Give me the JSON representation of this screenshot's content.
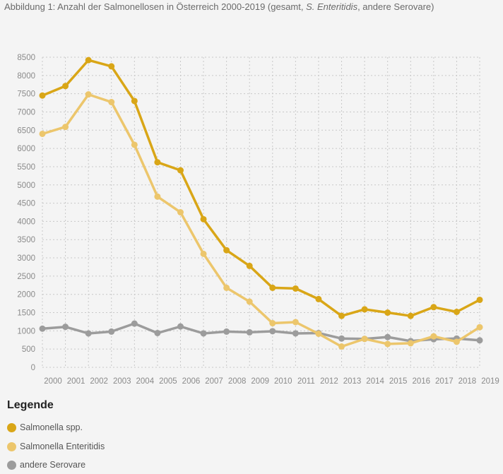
{
  "title": {
    "prefix": "Abbildung 1: Anzahl der Salmonellosen in Österreich 2000-2019 (gesamt, ",
    "italic": "S. Enteritidis",
    "suffix": ", andere Serovare)"
  },
  "legend": {
    "title": "Legende",
    "items": [
      "Salmonella spp.",
      "Salmonella Enteritidis",
      "andere Serovare"
    ]
  },
  "colors": {
    "spp": "#d9a617",
    "enteritidis": "#ecc66c",
    "andere": "#9c9c9c",
    "grid": "#c8c8c8"
  },
  "chart_data": {
    "type": "line",
    "title": "Abbildung 1: Anzahl der Salmonellosen in Österreich 2000-2019 (gesamt, S. Enteritidis, andere Serovare)",
    "xlabel": "",
    "ylabel": "",
    "ylim": [
      0,
      8500
    ],
    "yticks": [
      0,
      500,
      1000,
      1500,
      2000,
      2500,
      3000,
      3500,
      4000,
      4500,
      5000,
      5500,
      6000,
      6500,
      7000,
      7500,
      8000,
      8500
    ],
    "x": [
      "2000",
      "2001",
      "2002",
      "2003",
      "2004",
      "2005",
      "2006",
      "2007",
      "2008",
      "2009",
      "2010",
      "2011",
      "2012",
      "2013",
      "2014",
      "2015",
      "2016",
      "2017",
      "2018",
      "2019"
    ],
    "grid": true,
    "legend_position": "bottom",
    "series": [
      {
        "name": "Salmonella spp.",
        "color": "#d9a617",
        "values": [
          7450,
          7710,
          8420,
          8250,
          7300,
          5620,
          5400,
          4060,
          3210,
          2780,
          2180,
          2160,
          1870,
          1410,
          1590,
          1500,
          1410,
          1650,
          1520,
          1850
        ]
      },
      {
        "name": "Salmonella Enteritidis",
        "color": "#ecc66c",
        "values": [
          6400,
          6590,
          7480,
          7270,
          6100,
          4680,
          4250,
          3110,
          2180,
          1800,
          1210,
          1240,
          920,
          570,
          780,
          640,
          660,
          850,
          700,
          1100
        ]
      },
      {
        "name": "andere Serovare",
        "color": "#9c9c9c",
        "values": [
          1060,
          1110,
          930,
          980,
          1200,
          940,
          1120,
          930,
          980,
          960,
          990,
          930,
          940,
          790,
          780,
          830,
          720,
          770,
          790,
          740
        ]
      }
    ]
  }
}
